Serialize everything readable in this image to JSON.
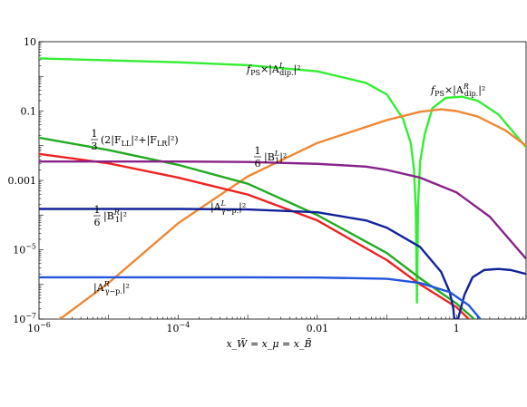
{
  "chart_data": {
    "type": "line",
    "xlabel": "x_W̃ = x_μ = x_B̃",
    "x_scale": "log",
    "y_scale": "log",
    "xlim": [
      1e-06,
      10
    ],
    "ylim": [
      1e-07,
      10
    ],
    "x_ticks": [
      {
        "value": 1e-06,
        "label": "10^-6"
      },
      {
        "value": 0.0001,
        "label": "10^-4"
      },
      {
        "value": 0.01,
        "label": "0.01"
      },
      {
        "value": 1,
        "label": "1"
      }
    ],
    "y_ticks": [
      {
        "value": 10,
        "label": "10"
      },
      {
        "value": 0.1,
        "label": "0.1"
      },
      {
        "value": 0.001,
        "label": "0.001"
      },
      {
        "value": 1e-05,
        "label": "10^-5"
      },
      {
        "value": 1e-07,
        "label": "10^-7"
      }
    ],
    "series": [
      {
        "key": "fps_AL",
        "color": "#33ee33",
        "points": [
          [
            1e-06,
            3.3
          ],
          [
            1e-05,
            2.9
          ],
          [
            0.0001,
            2.55
          ],
          [
            0.001,
            2.1
          ],
          [
            0.01,
            1.4
          ],
          [
            0.05,
            0.65
          ],
          [
            0.1,
            0.3
          ],
          [
            0.17,
            0.06
          ],
          [
            0.22,
            0.012
          ],
          [
            0.245,
            0.002
          ],
          [
            0.26,
            0.00015
          ],
          [
            0.27,
            3e-07
          ],
          [
            0.28,
            0.0002
          ],
          [
            0.3,
            0.0035
          ],
          [
            0.35,
            0.022
          ],
          [
            0.45,
            0.12
          ],
          [
            0.7,
            0.24
          ],
          [
            1.2,
            0.26
          ],
          [
            2,
            0.2
          ],
          [
            4,
            0.08
          ],
          [
            10,
            0.009
          ]
        ]
      },
      {
        "key": "fps_AR",
        "color": "#ee8833",
        "points": [
          [
            2e-06,
            1e-07
          ],
          [
            1e-05,
            1.1e-06
          ],
          [
            0.0001,
            5.8e-05
          ],
          [
            0.001,
            0.0013
          ],
          [
            0.01,
            0.012
          ],
          [
            0.1,
            0.055
          ],
          [
            0.3,
            0.095
          ],
          [
            0.6,
            0.112
          ],
          [
            1,
            0.1
          ],
          [
            2,
            0.07
          ],
          [
            5,
            0.028
          ],
          [
            10,
            0.01
          ]
        ]
      },
      {
        "key": "F_combo",
        "color": "#22aa22",
        "points": [
          [
            1e-06,
            0.017
          ],
          [
            1e-05,
            0.0075
          ],
          [
            0.0001,
            0.0028
          ],
          [
            0.001,
            0.0008
          ],
          [
            0.01,
            0.0001
          ],
          [
            0.1,
            8e-06
          ],
          [
            0.3,
            1.5e-06
          ],
          [
            1,
            2.8e-07
          ],
          [
            1.8,
            1e-07
          ]
        ]
      },
      {
        "key": "red",
        "color": "#ee2222",
        "points": [
          [
            1e-06,
            0.0058
          ],
          [
            1e-05,
            0.0031
          ],
          [
            0.0001,
            0.0012
          ],
          [
            0.001,
            0.00039
          ],
          [
            0.01,
            7e-05
          ],
          [
            0.1,
            5e-06
          ],
          [
            0.3,
            1e-06
          ],
          [
            1,
            2.2e-07
          ],
          [
            1.5,
            1e-07
          ]
        ]
      },
      {
        "key": "B1L",
        "color": "#882288",
        "points": [
          [
            1e-06,
            0.0035
          ],
          [
            0.0001,
            0.0035
          ],
          [
            0.001,
            0.0034
          ],
          [
            0.01,
            0.003
          ],
          [
            0.05,
            0.0025
          ],
          [
            0.1,
            0.002
          ],
          [
            0.3,
            0.0012
          ],
          [
            1,
            0.00045
          ],
          [
            3,
            9e-05
          ],
          [
            10,
            5.5e-06
          ]
        ]
      },
      {
        "key": "B1R",
        "color": "#112299",
        "points": [
          [
            1e-06,
            0.00015
          ],
          [
            0.0001,
            0.00015
          ],
          [
            0.001,
            0.000145
          ],
          [
            0.01,
            0.00012
          ],
          [
            0.05,
            7e-05
          ],
          [
            0.1,
            4.3e-05
          ],
          [
            0.3,
            1.2e-05
          ],
          [
            0.6,
            2.3e-06
          ],
          [
            0.8,
            6e-07
          ],
          [
            0.9,
            2e-07
          ],
          [
            0.93,
            1e-07
          ],
          [
            1.05,
            1e-07
          ],
          [
            1.3,
            5e-07
          ],
          [
            1.7,
            1.6e-06
          ],
          [
            2.5,
            2.6e-06
          ],
          [
            4,
            2.8e-06
          ],
          [
            6,
            2.6e-06
          ],
          [
            10,
            2e-06
          ]
        ]
      },
      {
        "key": "AgpR",
        "color": "#2255dd",
        "points": [
          [
            1e-06,
            1.6e-06
          ],
          [
            0.001,
            1.6e-06
          ],
          [
            0.01,
            1.58e-06
          ],
          [
            0.1,
            1.45e-06
          ],
          [
            0.3,
            1.1e-06
          ],
          [
            0.8,
            6e-07
          ],
          [
            1.5,
            2.5e-07
          ],
          [
            2.2,
            1e-07
          ]
        ]
      }
    ],
    "annotations": [
      {
        "key": "fps_AL",
        "prefix": "f",
        "prefix_sub": "PS",
        "mid": "×|A",
        "sup": "L",
        "sub": "dip.",
        "tail": "|²"
      },
      {
        "key": "fps_AR",
        "prefix": "f",
        "prefix_sub": "PS",
        "mid": "×|A",
        "sup": "R",
        "sub": "dip.",
        "tail": "|²"
      },
      {
        "key": "F_combo",
        "frac_num": "1",
        "frac_den": "3",
        "text": "(2|F",
        "sub1": "LL",
        "text2": "|²+|F",
        "sub2": "LR",
        "text3": "|²)"
      },
      {
        "key": "B1L",
        "frac_num": "1",
        "frac_den": "6",
        "text": "|B",
        "sub1": "1",
        "sup1": "L",
        "text3": "|²"
      },
      {
        "key": "B1R",
        "frac_num": "1",
        "frac_den": "6",
        "text": "|B",
        "sub1": "1",
        "sup1": "R",
        "text3": "|²"
      },
      {
        "key": "AgpL",
        "text": "|A",
        "sup1": "L",
        "sub1": "γ−p.",
        "text3": "|²"
      },
      {
        "key": "AgpR",
        "text": "|A",
        "sup1": "R",
        "sub1": "γ−p.",
        "text3": "|²"
      }
    ]
  }
}
